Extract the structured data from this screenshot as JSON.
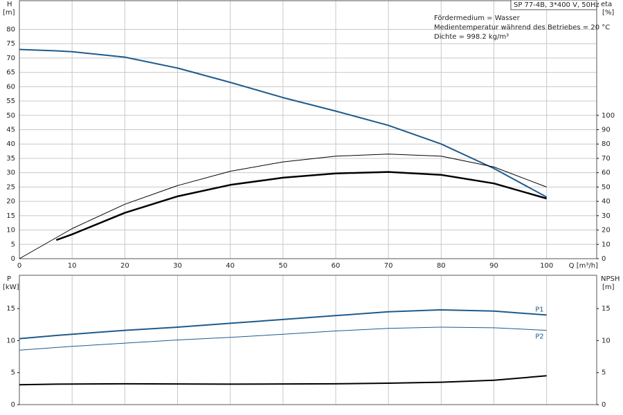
{
  "chart_data": [
    {
      "type": "line",
      "title": "SP 77-4B, 3*400 V, 50Hz",
      "annotations": [
        "Fördermedium = Wasser",
        "Medientemperatur während des Betriebes = 20 °C",
        "Dichte = 998.2 kg/m³"
      ],
      "y_label": "H",
      "y_unit": "[m]",
      "y2_label": "eta",
      "y2_unit": "[%]",
      "x_label": "Q [m³/h]",
      "xlim": [
        0,
        109.5
      ],
      "xticks": [
        0,
        10,
        20,
        30,
        40,
        50,
        60,
        70,
        80,
        90,
        100
      ],
      "x_tick_labels": true,
      "ylim": [
        0,
        90
      ],
      "yticks": [
        0,
        5,
        10,
        15,
        20,
        25,
        30,
        35,
        40,
        45,
        50,
        55,
        60,
        65,
        70,
        75,
        80
      ],
      "y2lim": [
        0,
        180
      ],
      "y2ticks": [
        0,
        10,
        20,
        30,
        40,
        50,
        60,
        70,
        80,
        90,
        100
      ],
      "grid": "both",
      "series": [
        {
          "color": "#1d5a8c",
          "line_width": 2,
          "x": [
            0,
            7,
            10,
            20,
            30,
            40,
            50,
            60,
            70,
            80,
            90,
            100
          ],
          "values": [
            73,
            72.5,
            72.2,
            70.3,
            66.5,
            61.5,
            56.2,
            51.5,
            46.5,
            40,
            31.5,
            21.5
          ]
        },
        {
          "color": "#000000",
          "line_width": 1,
          "axis": "y2",
          "x": [
            0,
            10,
            20,
            30,
            40,
            50,
            60,
            70,
            80,
            90,
            100
          ],
          "values": [
            0,
            21,
            38,
            51,
            61,
            67.5,
            71.5,
            73,
            71.5,
            64,
            50
          ]
        },
        {
          "color": "#000000",
          "line_width": 2.5,
          "axis": "y2",
          "x": [
            7,
            10,
            20,
            30,
            40,
            50,
            60,
            70,
            80,
            90,
            100
          ],
          "values": [
            13,
            17,
            32,
            43.5,
            51.5,
            56.5,
            59.5,
            60.5,
            58.5,
            52.5,
            42
          ]
        }
      ]
    },
    {
      "type": "line",
      "y_label": "P",
      "y_unit": "[kW]",
      "y2_label": "NPSH",
      "y2_unit": "[m]",
      "xlim": [
        0,
        109.5
      ],
      "xticks": [
        0,
        10,
        20,
        30,
        40,
        50,
        60,
        70,
        80,
        90,
        100
      ],
      "x_tick_labels": false,
      "ylim": [
        0,
        20.2
      ],
      "yticks": [
        0,
        5,
        10,
        15
      ],
      "y2lim": [
        0,
        20.2
      ],
      "y2ticks": [
        0,
        5,
        10,
        15
      ],
      "grid": "x",
      "series": [
        {
          "name": "P1",
          "color": "#1d5a8c",
          "line_width": 2,
          "x": [
            0,
            7,
            10,
            20,
            30,
            40,
            50,
            60,
            70,
            80,
            90,
            100
          ],
          "values": [
            10.3,
            10.8,
            11.0,
            11.6,
            12.1,
            12.7,
            13.3,
            13.9,
            14.5,
            14.8,
            14.6,
            14.0
          ]
        },
        {
          "name": "P2",
          "color": "#1d5a8c",
          "line_width": 1,
          "x": [
            0,
            10,
            20,
            30,
            40,
            50,
            60,
            70,
            80,
            90,
            100
          ],
          "values": [
            8.5,
            9.1,
            9.6,
            10.1,
            10.5,
            11.0,
            11.5,
            11.9,
            12.1,
            12.0,
            11.6
          ]
        },
        {
          "color": "#000000",
          "line_width": 2,
          "axis": "y2",
          "x": [
            0,
            7,
            20,
            40,
            60,
            70,
            80,
            90,
            100
          ],
          "values": [
            3.1,
            3.2,
            3.25,
            3.2,
            3.25,
            3.35,
            3.5,
            3.8,
            4.5
          ]
        }
      ]
    }
  ]
}
